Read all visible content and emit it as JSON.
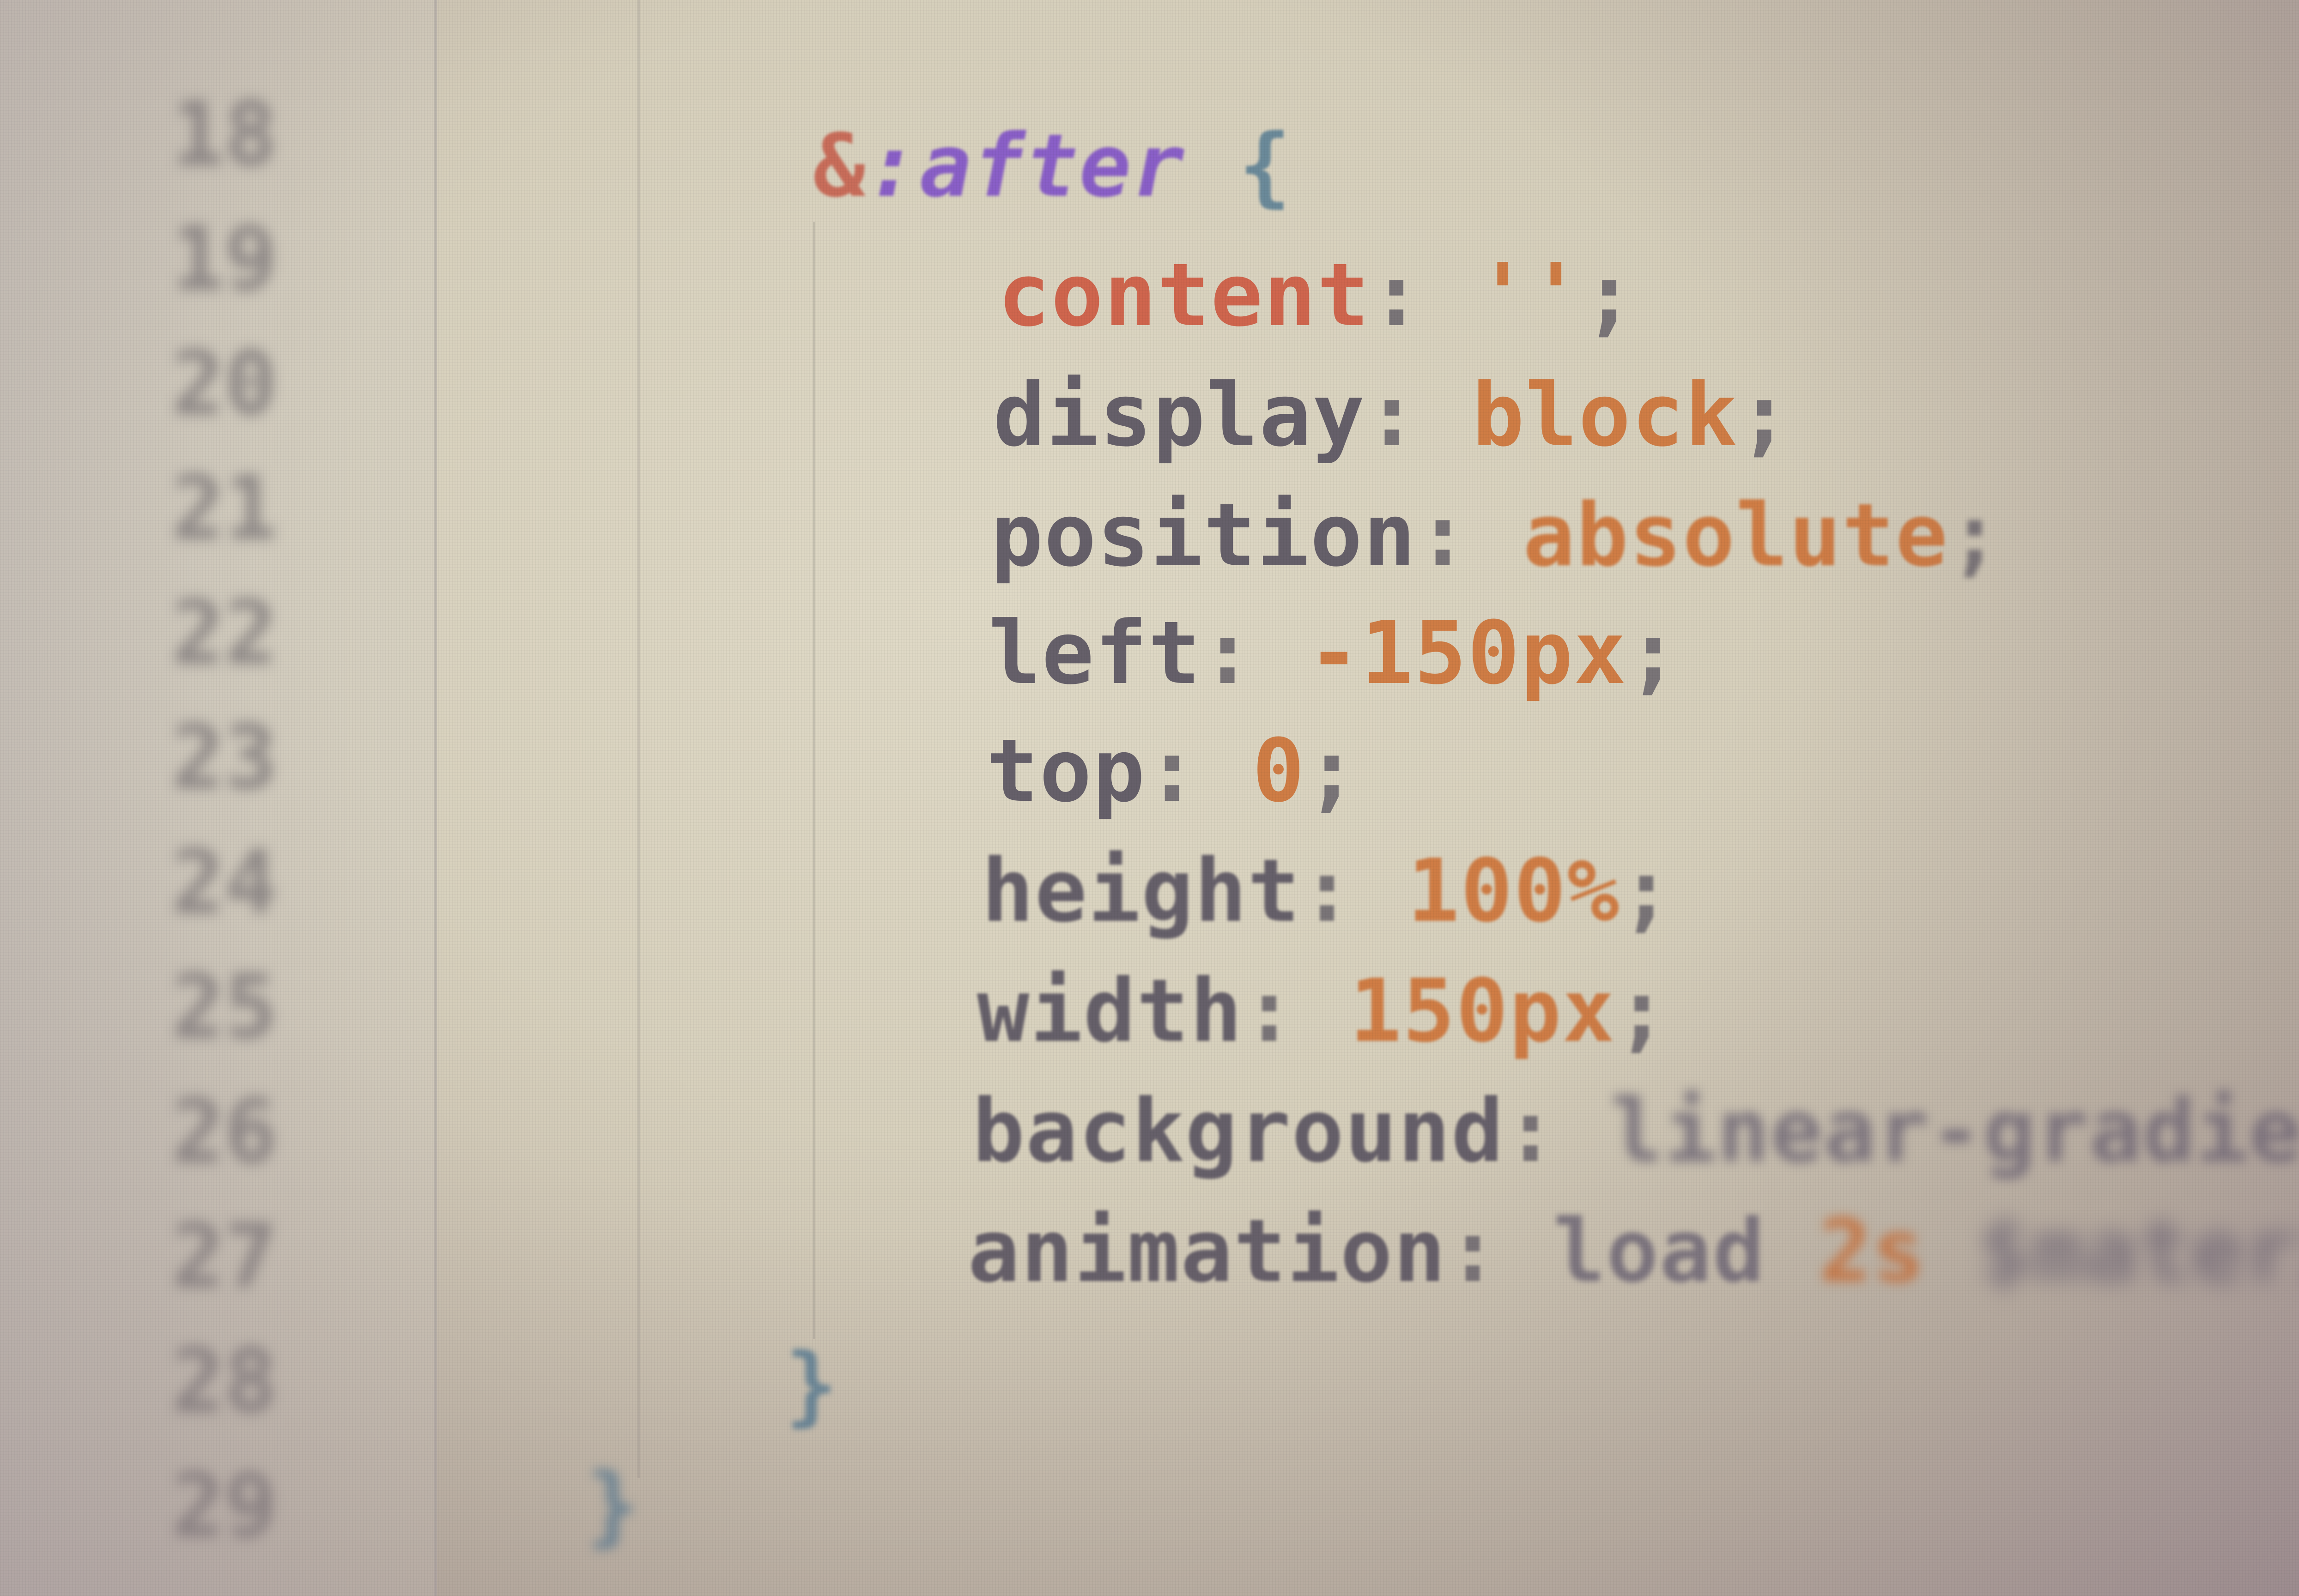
{
  "editor": {
    "line_numbers": [
      "18",
      "19",
      "20",
      "21",
      "22",
      "23",
      "24",
      "25",
      "26",
      "27",
      "28",
      "29"
    ],
    "lines": [
      {
        "selector": "&",
        "pseudo": ":after",
        "brace": "{"
      },
      {
        "prop": "content",
        "colon": ":",
        "value": "''",
        "semi": ";"
      },
      {
        "prop": "display",
        "colon": ":",
        "value": "block",
        "semi": ";"
      },
      {
        "prop": "position",
        "colon": ":",
        "value": "absolute",
        "semi": ";"
      },
      {
        "prop": "left",
        "colon": ":",
        "value": "-150px",
        "semi": ";"
      },
      {
        "prop": "top",
        "colon": ":",
        "value": "0",
        "semi": ";"
      },
      {
        "prop": "height",
        "colon": ":",
        "value": "100%",
        "semi": ";"
      },
      {
        "prop": "width",
        "colon": ":",
        "value": "150px",
        "semi": ";"
      },
      {
        "prop": "background",
        "colon": ":",
        "value": "linear-gradient(to rig"
      },
      {
        "prop": "animation",
        "colon": ":",
        "value1": "load",
        "value2": "2s",
        "value3": "$material-trans"
      },
      {
        "brace": "}"
      },
      {
        "brace": "}"
      }
    ]
  },
  "colors": {
    "selector": "#c96d5a",
    "pseudo": "#8a5fc8",
    "property": "#66606a",
    "value": "#d07d45",
    "brace": "#6b8a9a"
  }
}
